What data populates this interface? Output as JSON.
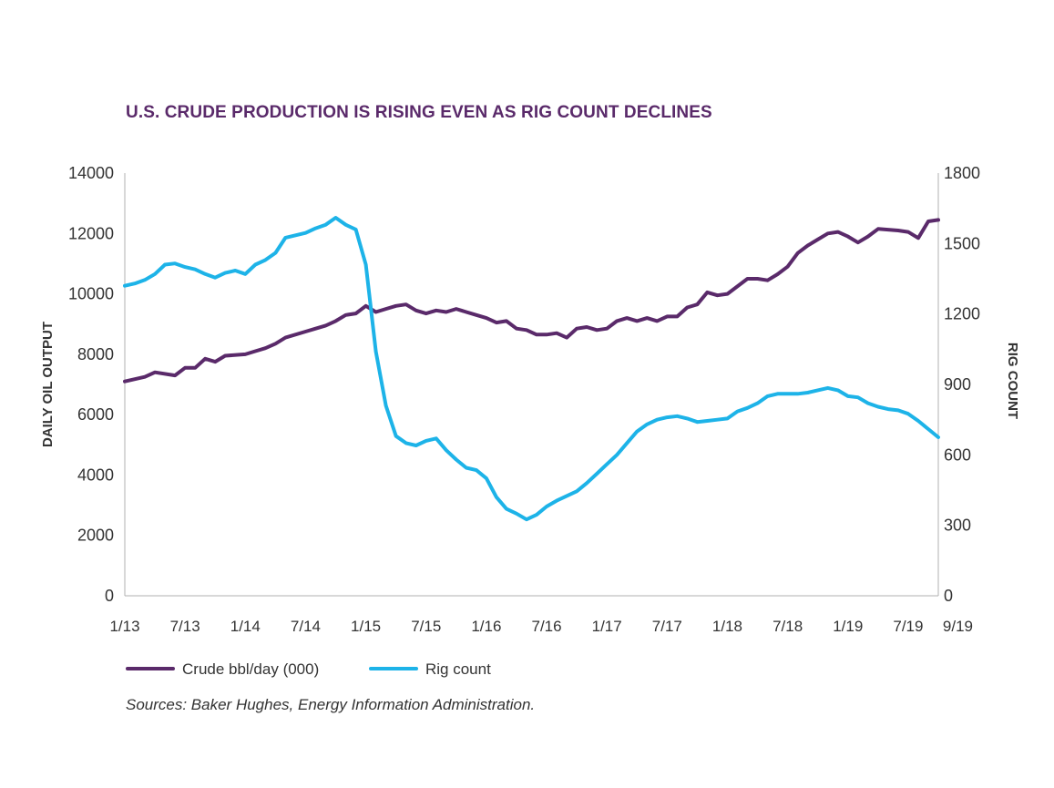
{
  "chart_data": {
    "type": "line",
    "title": "U.S. CRUDE PRODUCTION IS RISING EVEN AS RIG COUNT DECLINES",
    "y_left_label": "DAILY OIL OUTPUT",
    "y_right_label": "RIG COUNT",
    "y_left_lim": [
      0,
      14000
    ],
    "y_right_lim": [
      0,
      1800
    ],
    "y_left_ticks": [
      "0",
      "2000",
      "4000",
      "6000",
      "8000",
      "10000",
      "12000",
      "14000"
    ],
    "y_right_ticks": [
      "0",
      "300",
      "600",
      "900",
      "1200",
      "1500",
      "1800"
    ],
    "x_lim": [
      "2013-01",
      "2019-10"
    ],
    "x_ticks": [
      {
        "date": "2013-01",
        "label": "1/13"
      },
      {
        "date": "2013-07",
        "label": "7/13"
      },
      {
        "date": "2014-01",
        "label": "1/14"
      },
      {
        "date": "2014-07",
        "label": "7/14"
      },
      {
        "date": "2015-01",
        "label": "1/15"
      },
      {
        "date": "2015-07",
        "label": "7/15"
      },
      {
        "date": "2016-01",
        "label": "1/16"
      },
      {
        "date": "2016-07",
        "label": "7/16"
      },
      {
        "date": "2017-01",
        "label": "1/17"
      },
      {
        "date": "2017-07",
        "label": "7/17"
      },
      {
        "date": "2018-01",
        "label": "1/18"
      },
      {
        "date": "2018-07",
        "label": "7/18"
      },
      {
        "date": "2019-01",
        "label": "1/19"
      },
      {
        "date": "2019-07",
        "label": "7/19"
      },
      {
        "date": "2019-10",
        "label": "9/19"
      }
    ],
    "grid": false,
    "legend_position": "bottom-left",
    "series": [
      {
        "name": "Crude bbl/day (000)",
        "axis": "left",
        "color": "#5a2a6a",
        "points": [
          [
            "2013-01",
            7100
          ],
          [
            "2013-03",
            7250
          ],
          [
            "2013-04",
            7400
          ],
          [
            "2013-06",
            7300
          ],
          [
            "2013-07",
            7550
          ],
          [
            "2013-08",
            7550
          ],
          [
            "2013-09",
            7850
          ],
          [
            "2013-10",
            7750
          ],
          [
            "2013-11",
            7950
          ],
          [
            "2014-01",
            8000
          ],
          [
            "2014-02",
            8100
          ],
          [
            "2014-03",
            8200
          ],
          [
            "2014-04",
            8350
          ],
          [
            "2014-05",
            8550
          ],
          [
            "2014-07",
            8750
          ],
          [
            "2014-08",
            8850
          ],
          [
            "2014-09",
            8950
          ],
          [
            "2014-10",
            9100
          ],
          [
            "2014-11",
            9300
          ],
          [
            "2014-12",
            9350
          ],
          [
            "2015-01",
            9600
          ],
          [
            "2015-02",
            9400
          ],
          [
            "2015-03",
            9500
          ],
          [
            "2015-04",
            9600
          ],
          [
            "2015-05",
            9650
          ],
          [
            "2015-06",
            9450
          ],
          [
            "2015-07",
            9350
          ],
          [
            "2015-08",
            9450
          ],
          [
            "2015-09",
            9400
          ],
          [
            "2015-10",
            9500
          ],
          [
            "2015-11",
            9400
          ],
          [
            "2015-12",
            9300
          ],
          [
            "2016-01",
            9200
          ],
          [
            "2016-02",
            9050
          ],
          [
            "2016-03",
            9100
          ],
          [
            "2016-04",
            8850
          ],
          [
            "2016-05",
            8800
          ],
          [
            "2016-06",
            8650
          ],
          [
            "2016-07",
            8650
          ],
          [
            "2016-08",
            8700
          ],
          [
            "2016-09",
            8550
          ],
          [
            "2016-10",
            8850
          ],
          [
            "2016-11",
            8900
          ],
          [
            "2016-12",
            8800
          ],
          [
            "2017-01",
            8850
          ],
          [
            "2017-02",
            9100
          ],
          [
            "2017-03",
            9200
          ],
          [
            "2017-04",
            9100
          ],
          [
            "2017-05",
            9200
          ],
          [
            "2017-06",
            9100
          ],
          [
            "2017-07",
            9250
          ],
          [
            "2017-08",
            9250
          ],
          [
            "2017-09",
            9550
          ],
          [
            "2017-10",
            9650
          ],
          [
            "2017-11",
            10050
          ],
          [
            "2017-12",
            9950
          ],
          [
            "2018-01",
            10000
          ],
          [
            "2018-03",
            10500
          ],
          [
            "2018-04",
            10500
          ],
          [
            "2018-05",
            10450
          ],
          [
            "2018-06",
            10650
          ],
          [
            "2018-07",
            10900
          ],
          [
            "2018-08",
            11350
          ],
          [
            "2018-09",
            11600
          ],
          [
            "2018-10",
            11800
          ],
          [
            "2018-11",
            12000
          ],
          [
            "2018-12",
            12050
          ],
          [
            "2019-01",
            11900
          ],
          [
            "2019-02",
            11700
          ],
          [
            "2019-03",
            11900
          ],
          [
            "2019-04",
            12150
          ],
          [
            "2019-06",
            12100
          ],
          [
            "2019-07",
            12050
          ],
          [
            "2019-08",
            11850
          ],
          [
            "2019-09",
            12400
          ],
          [
            "2019-10",
            12450
          ]
        ]
      },
      {
        "name": "Rig count",
        "axis": "right",
        "color": "#1db3e8",
        "points": [
          [
            "2013-01",
            1320
          ],
          [
            "2013-02",
            1330
          ],
          [
            "2013-03",
            1345
          ],
          [
            "2013-04",
            1370
          ],
          [
            "2013-05",
            1410
          ],
          [
            "2013-06",
            1415
          ],
          [
            "2013-07",
            1400
          ],
          [
            "2013-08",
            1390
          ],
          [
            "2013-09",
            1370
          ],
          [
            "2013-10",
            1355
          ],
          [
            "2013-11",
            1375
          ],
          [
            "2013-12",
            1385
          ],
          [
            "2014-01",
            1370
          ],
          [
            "2014-02",
            1410
          ],
          [
            "2014-03",
            1430
          ],
          [
            "2014-04",
            1460
          ],
          [
            "2014-05",
            1525
          ],
          [
            "2014-06",
            1535
          ],
          [
            "2014-07",
            1545
          ],
          [
            "2014-08",
            1565
          ],
          [
            "2014-09",
            1580
          ],
          [
            "2014-10",
            1610
          ],
          [
            "2014-11",
            1580
          ],
          [
            "2014-12",
            1560
          ],
          [
            "2015-01",
            1410
          ],
          [
            "2015-02",
            1040
          ],
          [
            "2015-03",
            810
          ],
          [
            "2015-04",
            680
          ],
          [
            "2015-05",
            650
          ],
          [
            "2015-06",
            640
          ],
          [
            "2015-07",
            660
          ],
          [
            "2015-08",
            670
          ],
          [
            "2015-09",
            620
          ],
          [
            "2015-10",
            580
          ],
          [
            "2015-11",
            545
          ],
          [
            "2015-12",
            535
          ],
          [
            "2016-01",
            500
          ],
          [
            "2016-02",
            420
          ],
          [
            "2016-03",
            370
          ],
          [
            "2016-04",
            350
          ],
          [
            "2016-05",
            325
          ],
          [
            "2016-06",
            345
          ],
          [
            "2016-07",
            380
          ],
          [
            "2016-08",
            405
          ],
          [
            "2016-09",
            425
          ],
          [
            "2016-10",
            445
          ],
          [
            "2016-11",
            480
          ],
          [
            "2016-12",
            520
          ],
          [
            "2017-01",
            560
          ],
          [
            "2017-02",
            600
          ],
          [
            "2017-03",
            650
          ],
          [
            "2017-04",
            700
          ],
          [
            "2017-05",
            730
          ],
          [
            "2017-06",
            750
          ],
          [
            "2017-07",
            760
          ],
          [
            "2017-08",
            765
          ],
          [
            "2017-09",
            755
          ],
          [
            "2017-10",
            740
          ],
          [
            "2017-11",
            745
          ],
          [
            "2017-12",
            750
          ],
          [
            "2018-01",
            755
          ],
          [
            "2018-02",
            785
          ],
          [
            "2018-03",
            800
          ],
          [
            "2018-04",
            820
          ],
          [
            "2018-05",
            850
          ],
          [
            "2018-06",
            860
          ],
          [
            "2018-07",
            860
          ],
          [
            "2018-08",
            860
          ],
          [
            "2018-09",
            865
          ],
          [
            "2018-10",
            875
          ],
          [
            "2018-11",
            885
          ],
          [
            "2018-12",
            875
          ],
          [
            "2019-01",
            850
          ],
          [
            "2019-02",
            845
          ],
          [
            "2019-03",
            820
          ],
          [
            "2019-04",
            805
          ],
          [
            "2019-05",
            795
          ],
          [
            "2019-06",
            790
          ],
          [
            "2019-07",
            775
          ],
          [
            "2019-08",
            745
          ],
          [
            "2019-09",
            710
          ],
          [
            "2019-10",
            675
          ]
        ]
      }
    ]
  },
  "sources": "Sources: Baker Hughes, Energy Information Administration."
}
